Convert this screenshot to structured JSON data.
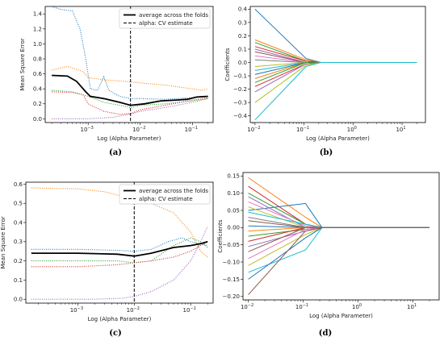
{
  "chart_data": [
    {
      "id": "a",
      "type": "line",
      "caption": "(a)",
      "xlabel": "Log (Alpha Parameter)",
      "ylabel": "Mean Square Error",
      "xscale": "log",
      "xlim": [
        0.00015,
        0.25
      ],
      "ylim": [
        -0.05,
        1.5
      ],
      "xticks": [
        {
          "v": 0.001,
          "base": "10",
          "exp": "−3"
        },
        {
          "v": 0.01,
          "base": "10",
          "exp": "−2"
        },
        {
          "v": 0.1,
          "base": "10",
          "exp": "−1"
        }
      ],
      "yticks": [
        0.0,
        0.2,
        0.4,
        0.6,
        0.8,
        1.0,
        1.2,
        1.4
      ],
      "ytick_labels": [
        "0.0",
        "0.2",
        "0.4",
        "0.6",
        "0.8",
        "1.0",
        "1.2",
        "1.4"
      ],
      "legend": {
        "placement": "top-right",
        "entries": [
          "average across the folds",
          "alpha: CV estimate"
        ]
      },
      "cv_alpha": 0.0065,
      "series": [
        {
          "style": "solid",
          "color": "#000000",
          "points": [
            [
              0.0002,
              0.58
            ],
            [
              0.0004,
              0.57
            ],
            [
              0.0006,
              0.5
            ],
            [
              0.0009,
              0.36
            ],
            [
              0.0011,
              0.3
            ],
            [
              0.002,
              0.27
            ],
            [
              0.004,
              0.22
            ],
            [
              0.0065,
              0.18
            ],
            [
              0.012,
              0.2
            ],
            [
              0.025,
              0.24
            ],
            [
              0.05,
              0.25
            ],
            [
              0.08,
              0.26
            ],
            [
              0.12,
              0.29
            ],
            [
              0.2,
              0.3
            ]
          ]
        },
        {
          "style": "dotted",
          "color": "#1f77b4",
          "points": [
            [
              0.0002,
              1.5
            ],
            [
              0.0003,
              1.46
            ],
            [
              0.0005,
              1.44
            ],
            [
              0.0007,
              1.2
            ],
            [
              0.0009,
              0.8
            ],
            [
              0.0011,
              0.4
            ],
            [
              0.0015,
              0.38
            ],
            [
              0.002,
              0.56
            ],
            [
              0.0025,
              0.38
            ],
            [
              0.004,
              0.3
            ],
            [
              0.0065,
              0.27
            ],
            [
              0.01,
              0.27
            ],
            [
              0.03,
              0.26
            ],
            [
              0.1,
              0.28
            ],
            [
              0.2,
              0.3
            ]
          ]
        },
        {
          "style": "dotted",
          "color": "#ff7f0e",
          "points": [
            [
              0.0002,
              0.65
            ],
            [
              0.0004,
              0.7
            ],
            [
              0.0008,
              0.63
            ],
            [
              0.001,
              0.55
            ],
            [
              0.002,
              0.52
            ],
            [
              0.005,
              0.5
            ],
            [
              0.01,
              0.48
            ],
            [
              0.03,
              0.45
            ],
            [
              0.06,
              0.42
            ],
            [
              0.1,
              0.4
            ],
            [
              0.15,
              0.38
            ],
            [
              0.2,
              0.4
            ]
          ]
        },
        {
          "style": "dotted",
          "color": "#2ca02c",
          "points": [
            [
              0.0002,
              0.38
            ],
            [
              0.0005,
              0.36
            ],
            [
              0.001,
              0.3
            ],
            [
              0.002,
              0.22
            ],
            [
              0.004,
              0.18
            ],
            [
              0.0065,
              0.15
            ],
            [
              0.01,
              0.18
            ],
            [
              0.03,
              0.2
            ],
            [
              0.1,
              0.24
            ],
            [
              0.2,
              0.27
            ]
          ]
        },
        {
          "style": "dotted",
          "color": "#d62728",
          "points": [
            [
              0.0002,
              0.36
            ],
            [
              0.0005,
              0.35
            ],
            [
              0.0008,
              0.32
            ],
            [
              0.001,
              0.2
            ],
            [
              0.002,
              0.1
            ],
            [
              0.004,
              0.06
            ],
            [
              0.0065,
              0.07
            ],
            [
              0.01,
              0.12
            ],
            [
              0.03,
              0.18
            ],
            [
              0.1,
              0.25
            ],
            [
              0.2,
              0.28
            ]
          ]
        },
        {
          "style": "dotted",
          "color": "#9467bd",
          "points": [
            [
              0.0002,
              0.0
            ],
            [
              0.001,
              0.0
            ],
            [
              0.003,
              0.02
            ],
            [
              0.006,
              0.06
            ],
            [
              0.01,
              0.1
            ],
            [
              0.03,
              0.15
            ],
            [
              0.1,
              0.22
            ],
            [
              0.2,
              0.27
            ]
          ]
        }
      ]
    },
    {
      "id": "b",
      "type": "line",
      "caption": "(b)",
      "xlabel": "Log (Alpha Parameter)",
      "ylabel": "Coefficients",
      "xscale": "log",
      "xlim": [
        0.008,
        30
      ],
      "ylim": [
        -0.45,
        0.42
      ],
      "xticks": [
        {
          "v": 0.01,
          "base": "10",
          "exp": "−2"
        },
        {
          "v": 0.1,
          "base": "10",
          "exp": "−1"
        },
        {
          "v": 1,
          "base": "10",
          "exp": "0"
        },
        {
          "v": 10,
          "base": "10",
          "exp": "1"
        }
      ],
      "yticks": [
        -0.4,
        -0.3,
        -0.2,
        -0.1,
        0.0,
        0.1,
        0.2,
        0.3,
        0.4
      ],
      "ytick_labels": [
        "−0.4",
        "−0.3",
        "−0.2",
        "−0.1",
        "0.0",
        "0.1",
        "0.2",
        "0.3",
        "0.4"
      ],
      "x": [
        0.01,
        0.11,
        0.22,
        20
      ],
      "series": [
        {
          "color": "#1f77b4",
          "values": [
            0.4,
            0.03,
            0.0,
            0.0
          ]
        },
        {
          "color": "#ff7f0e",
          "values": [
            0.17,
            0.02,
            0.0,
            0.0
          ]
        },
        {
          "color": "#2ca02c",
          "values": [
            0.15,
            0.01,
            0.0,
            0.0
          ]
        },
        {
          "color": "#d62728",
          "values": [
            0.12,
            0.01,
            0.0,
            0.0
          ]
        },
        {
          "color": "#9467bd",
          "values": [
            0.1,
            0.0,
            0.0,
            0.0
          ]
        },
        {
          "color": "#8c564b",
          "values": [
            0.08,
            0.0,
            0.0,
            0.0
          ]
        },
        {
          "color": "#e377c2",
          "values": [
            0.05,
            0.0,
            0.0,
            0.0
          ]
        },
        {
          "color": "#7f7f7f",
          "values": [
            0.02,
            0.0,
            0.0,
            0.0
          ]
        },
        {
          "color": "#bcbd22",
          "values": [
            -0.03,
            0.0,
            0.0,
            0.0
          ]
        },
        {
          "color": "#17becf",
          "values": [
            -0.06,
            0.0,
            0.0,
            0.0
          ]
        },
        {
          "color": "#1f77b4",
          "values": [
            -0.09,
            0.0,
            0.0,
            0.0
          ]
        },
        {
          "color": "#ff7f0e",
          "values": [
            -0.12,
            0.0,
            0.0,
            0.0
          ]
        },
        {
          "color": "#2ca02c",
          "values": [
            -0.15,
            0.0,
            0.0,
            0.0
          ]
        },
        {
          "color": "#d62728",
          "values": [
            -0.18,
            -0.01,
            0.0,
            0.0
          ]
        },
        {
          "color": "#9467bd",
          "values": [
            -0.22,
            -0.01,
            0.0,
            0.0
          ]
        },
        {
          "color": "#bcbd22",
          "values": [
            -0.3,
            -0.02,
            0.0,
            0.0
          ]
        },
        {
          "color": "#17becf",
          "values": [
            -0.43,
            -0.03,
            0.0,
            0.0
          ]
        }
      ]
    },
    {
      "id": "c",
      "type": "line",
      "caption": "(c)",
      "xlabel": "Log (Alpha Parameter)",
      "ylabel": "Mean Square Error",
      "xscale": "log",
      "xlim": [
        0.00012,
        0.25
      ],
      "ylim": [
        -0.02,
        0.61
      ],
      "xticks": [
        {
          "v": 0.001,
          "base": "10",
          "exp": "−3"
        },
        {
          "v": 0.01,
          "base": "10",
          "exp": "−2"
        },
        {
          "v": 0.1,
          "base": "10",
          "exp": "−1"
        }
      ],
      "yticks": [
        0.0,
        0.1,
        0.2,
        0.3,
        0.4,
        0.5,
        0.6
      ],
      "ytick_labels": [
        "0.0",
        "0.1",
        "0.2",
        "0.3",
        "0.4",
        "0.5",
        "0.6"
      ],
      "legend": {
        "placement": "top-right",
        "entries": [
          "average across the folds",
          "alpha: CV estimate"
        ]
      },
      "cv_alpha": 0.01,
      "series": [
        {
          "style": "solid",
          "color": "#000000",
          "points": [
            [
              0.00015,
              0.24
            ],
            [
              0.001,
              0.24
            ],
            [
              0.005,
              0.235
            ],
            [
              0.01,
              0.225
            ],
            [
              0.02,
              0.24
            ],
            [
              0.05,
              0.27
            ],
            [
              0.1,
              0.28
            ],
            [
              0.15,
              0.29
            ],
            [
              0.2,
              0.3
            ]
          ]
        },
        {
          "style": "dotted",
          "color": "#1f77b4",
          "points": [
            [
              0.00015,
              0.26
            ],
            [
              0.001,
              0.26
            ],
            [
              0.005,
              0.255
            ],
            [
              0.01,
              0.25
            ],
            [
              0.02,
              0.26
            ],
            [
              0.04,
              0.3
            ],
            [
              0.07,
              0.32
            ],
            [
              0.1,
              0.3
            ],
            [
              0.2,
              0.28
            ]
          ]
        },
        {
          "style": "dotted",
          "color": "#ff7f0e",
          "points": [
            [
              0.00015,
              0.58
            ],
            [
              0.001,
              0.575
            ],
            [
              0.003,
              0.56
            ],
            [
              0.01,
              0.52
            ],
            [
              0.02,
              0.5
            ],
            [
              0.05,
              0.45
            ],
            [
              0.1,
              0.35
            ],
            [
              0.15,
              0.25
            ],
            [
              0.2,
              0.22
            ]
          ]
        },
        {
          "style": "dotted",
          "color": "#2ca02c",
          "points": [
            [
              0.00015,
              0.2
            ],
            [
              0.001,
              0.2
            ],
            [
              0.005,
              0.2
            ],
            [
              0.01,
              0.19
            ],
            [
              0.02,
              0.2
            ],
            [
              0.05,
              0.28
            ],
            [
              0.1,
              0.32
            ],
            [
              0.15,
              0.3
            ],
            [
              0.2,
              0.27
            ]
          ]
        },
        {
          "style": "dotted",
          "color": "#d62728",
          "points": [
            [
              0.00015,
              0.17
            ],
            [
              0.001,
              0.17
            ],
            [
              0.005,
              0.18
            ],
            [
              0.01,
              0.19
            ],
            [
              0.02,
              0.2
            ],
            [
              0.05,
              0.22
            ],
            [
              0.1,
              0.25
            ],
            [
              0.15,
              0.28
            ],
            [
              0.2,
              0.3
            ]
          ]
        },
        {
          "style": "dotted",
          "color": "#9467bd",
          "points": [
            [
              0.00015,
              0.0
            ],
            [
              0.002,
              0.0
            ],
            [
              0.006,
              0.005
            ],
            [
              0.01,
              0.015
            ],
            [
              0.02,
              0.04
            ],
            [
              0.05,
              0.1
            ],
            [
              0.1,
              0.2
            ],
            [
              0.15,
              0.3
            ],
            [
              0.2,
              0.38
            ]
          ]
        }
      ]
    },
    {
      "id": "d",
      "type": "line",
      "caption": "(d)",
      "xlabel": "Log (Alpha Parameter)",
      "ylabel": "Coefficients",
      "xscale": "log",
      "xlim": [
        0.008,
        30
      ],
      "ylim": [
        -0.21,
        0.16
      ],
      "xticks": [
        {
          "v": 0.01,
          "base": "10",
          "exp": "−2"
        },
        {
          "v": 0.1,
          "base": "10",
          "exp": "−1"
        },
        {
          "v": 1,
          "base": "10",
          "exp": "0"
        },
        {
          "v": 10,
          "base": "10",
          "exp": "1"
        }
      ],
      "yticks": [
        -0.2,
        -0.15,
        -0.1,
        -0.05,
        0.0,
        0.05,
        0.1,
        0.15
      ],
      "ytick_labels": [
        "−0.20",
        "−0.15",
        "−0.10",
        "−0.05",
        "0.00",
        "0.05",
        "0.10",
        "0.15"
      ],
      "x": [
        0.01,
        0.11,
        0.22,
        20
      ],
      "series": [
        {
          "color": "#ff7f0e",
          "values": [
            0.145,
            0.03,
            0.0,
            0.0
          ]
        },
        {
          "color": "#1f77b4",
          "values": [
            0.05,
            0.07,
            0.0,
            0.0
          ]
        },
        {
          "color": "#d62728",
          "values": [
            0.12,
            0.01,
            0.0,
            0.0
          ]
        },
        {
          "color": "#2ca02c",
          "values": [
            0.1,
            0.01,
            0.0,
            0.0
          ]
        },
        {
          "color": "#9467bd",
          "values": [
            0.09,
            0.0,
            0.0,
            0.0
          ]
        },
        {
          "color": "#e377c2",
          "values": [
            0.075,
            0.005,
            0.0,
            0.0
          ]
        },
        {
          "color": "#bcbd22",
          "values": [
            0.06,
            0.0,
            0.0,
            0.0
          ]
        },
        {
          "color": "#17becf",
          "values": [
            0.045,
            0.01,
            0.0,
            0.0
          ]
        },
        {
          "color": "#7f7f7f",
          "values": [
            0.03,
            0.0,
            0.0,
            0.0
          ]
        },
        {
          "color": "#8c564b",
          "values": [
            0.02,
            0.0,
            0.0,
            0.0
          ]
        },
        {
          "color": "#1f77b4",
          "values": [
            0.005,
            0.0,
            0.0,
            0.0
          ]
        },
        {
          "color": "#ff7f0e",
          "values": [
            -0.01,
            0.0,
            0.0,
            0.0
          ]
        },
        {
          "color": "#2ca02c",
          "values": [
            -0.025,
            -0.005,
            0.0,
            0.0
          ]
        },
        {
          "color": "#d62728",
          "values": [
            -0.04,
            0.0,
            0.0,
            0.0
          ]
        },
        {
          "color": "#9467bd",
          "values": [
            -0.055,
            -0.01,
            0.0,
            0.0
          ]
        },
        {
          "color": "#8c564b",
          "values": [
            -0.07,
            0.0,
            0.0,
            0.0
          ]
        },
        {
          "color": "#e377c2",
          "values": [
            -0.09,
            -0.005,
            0.0,
            0.0
          ]
        },
        {
          "color": "#bcbd22",
          "values": [
            -0.11,
            -0.02,
            0.0,
            0.0
          ]
        },
        {
          "color": "#17becf",
          "values": [
            -0.13,
            -0.065,
            0.0,
            0.0
          ]
        },
        {
          "color": "#1f77b4",
          "values": [
            -0.15,
            -0.03,
            0.0,
            0.0
          ]
        },
        {
          "color": "#8c564b",
          "values": [
            -0.195,
            -0.01,
            0.0,
            0.0
          ]
        }
      ]
    }
  ]
}
